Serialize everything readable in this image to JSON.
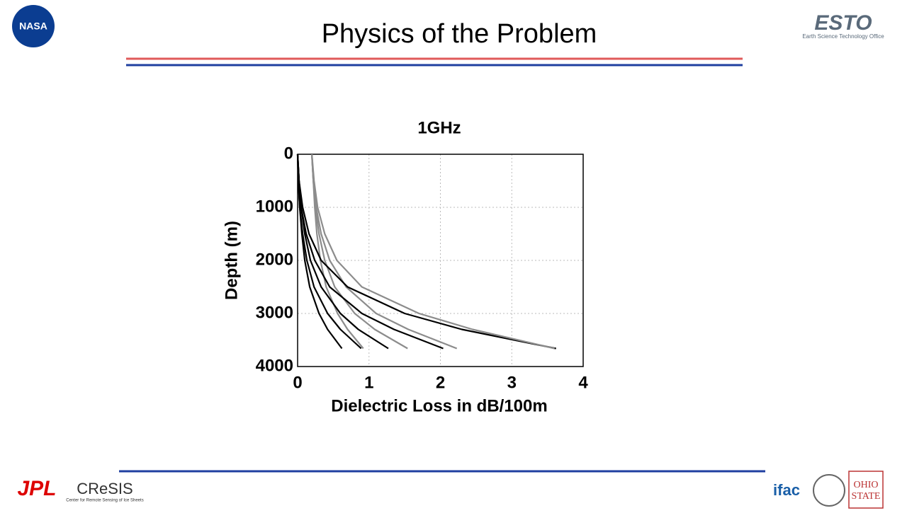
{
  "header": {
    "title": "Physics of the Problem"
  },
  "logos": {
    "nasa": "NASA",
    "esto": "ESTO",
    "esto_sub": "Earth Science Technology Office",
    "jpl": "JPL",
    "cresis": "CReSIS",
    "cresis_sub": "Center for Remote Sensing of Ice Sheets",
    "ifac": "ifac",
    "osu_1": "OHIO",
    "osu_2": "STATE"
  },
  "chart_data": {
    "type": "line",
    "title": "1GHz",
    "xlabel": "Dielectric Loss in dB/100m",
    "ylabel": "Depth (m)",
    "xlim": [
      0,
      4
    ],
    "xticks": [
      0,
      1,
      2,
      3,
      4
    ],
    "ylim": [
      0,
      4000
    ],
    "yticks": [
      0,
      1000,
      2000,
      3000,
      4000
    ],
    "y_inverted": true,
    "grid": true,
    "y": [
      0,
      500,
      1000,
      1500,
      2000,
      2500,
      3000,
      3300,
      3660
    ],
    "series": [
      {
        "color": "#000000",
        "values": [
          0,
          0.01,
          0.03,
          0.06,
          0.1,
          0.17,
          0.3,
          0.42,
          0.62
        ]
      },
      {
        "color": "#000000",
        "values": [
          0,
          0.01,
          0.03,
          0.07,
          0.13,
          0.23,
          0.42,
          0.6,
          0.89
        ]
      },
      {
        "color": "#8c8c8c",
        "values": [
          0.2,
          0.22,
          0.24,
          0.27,
          0.32,
          0.4,
          0.56,
          0.7,
          0.92
        ]
      },
      {
        "color": "#000000",
        "values": [
          0,
          0.02,
          0.05,
          0.1,
          0.18,
          0.33,
          0.6,
          0.85,
          1.27
        ]
      },
      {
        "color": "#8c8c8c",
        "values": [
          0.2,
          0.22,
          0.25,
          0.3,
          0.38,
          0.52,
          0.8,
          1.08,
          1.54
        ]
      },
      {
        "color": "#000000",
        "values": [
          0,
          0.02,
          0.05,
          0.12,
          0.24,
          0.45,
          0.9,
          1.35,
          2.04
        ]
      },
      {
        "color": "#8c8c8c",
        "values": [
          0.2,
          0.22,
          0.26,
          0.33,
          0.45,
          0.68,
          1.1,
          1.55,
          2.23
        ]
      },
      {
        "color": "#000000",
        "values": [
          0,
          0.02,
          0.07,
          0.16,
          0.33,
          0.7,
          1.5,
          2.3,
          3.62
        ]
      },
      {
        "color": "#8c8c8c",
        "values": [
          0.2,
          0.23,
          0.28,
          0.38,
          0.55,
          0.9,
          1.7,
          2.45,
          3.6
        ]
      }
    ]
  }
}
